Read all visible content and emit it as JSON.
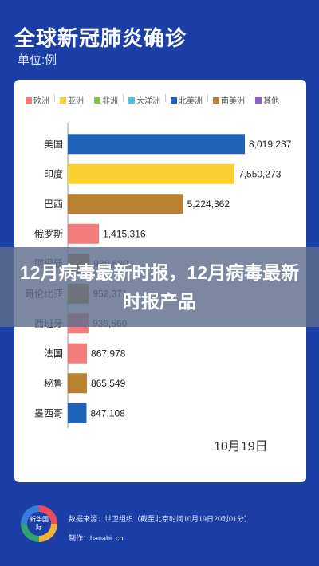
{
  "header": {
    "title": "全球新冠肺炎确诊",
    "unit": "单位:例"
  },
  "overlay": {
    "headline": "12月病毒最新时报，12月病毒最新时报产品"
  },
  "date_label": "10月19日",
  "footer": {
    "logo_text": "新华国际",
    "source": "数据来源：世卫组织（截至北京时间10月19日20时01分）",
    "made_by": "制作：hanabi .cn"
  },
  "chart_data": {
    "type": "bar",
    "orientation": "horizontal",
    "legend": [
      {
        "name": "欧洲",
        "color": "#f47c7c"
      },
      {
        "name": "亚洲",
        "color": "#f9d02f"
      },
      {
        "name": "非洲",
        "color": "#8cc152"
      },
      {
        "name": "大洋洲",
        "color": "#4fc1e9"
      },
      {
        "name": "北美洲",
        "color": "#1f63b8"
      },
      {
        "name": "南美洲",
        "color": "#b8802f"
      },
      {
        "name": "其他",
        "color": "#8e5ec9"
      }
    ],
    "categories": [
      "美国",
      "印度",
      "巴西",
      "俄罗斯",
      "阿根廷",
      "哥伦比亚",
      "西班牙",
      "法国",
      "秘鲁",
      "墨西哥"
    ],
    "values": [
      8019237,
      7550273,
      5224362,
      1415316,
      989680,
      952371,
      936560,
      867978,
      865549,
      847108
    ],
    "value_labels": [
      "8,019,237",
      "7,550,273",
      "5,224,362",
      "1,415,316",
      "989,680",
      "952,371",
      "936,560",
      "867,978",
      "865,549",
      "847,108"
    ],
    "continent_colors": [
      "#1f63b8",
      "#f9d02f",
      "#b8802f",
      "#f47c7c",
      "#b8802f",
      "#b8802f",
      "#f47c7c",
      "#f47c7c",
      "#b8802f",
      "#1f63b8"
    ],
    "xlim": [
      0,
      8019237
    ]
  }
}
